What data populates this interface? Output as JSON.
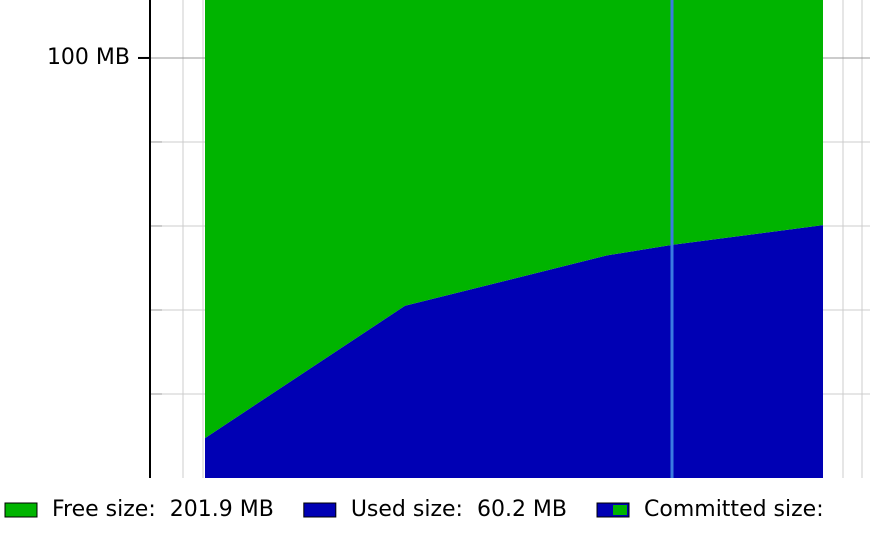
{
  "chart_data": {
    "type": "stacked_area",
    "x": [
      0,
      200,
      402,
      467,
      618
    ],
    "xlim": [
      0,
      618
    ],
    "ylim": [
      0,
      113.8
    ],
    "yticks": [
      {
        "value": 100,
        "label": "100 MB"
      }
    ],
    "minor_yticks": [
      20,
      40,
      60,
      80
    ],
    "grid": true,
    "cursor_x": 467,
    "cursor_color": "#3a7be0",
    "series": [
      {
        "name": "Used size:",
        "color": "#0000b4",
        "values": [
          9.5,
          41,
          53,
          55.5,
          60.2
        ],
        "legend_label": "60.2 MB"
      },
      {
        "name": "Free size:",
        "color": "#00b400",
        "values": [
          252.6,
          221.1,
          209.1,
          206.6,
          201.9
        ],
        "legend_label": "201.9 MB"
      },
      {
        "name": "Committed size:",
        "color": "#00b400",
        "edge": "#0000b4"
      }
    ]
  }
}
